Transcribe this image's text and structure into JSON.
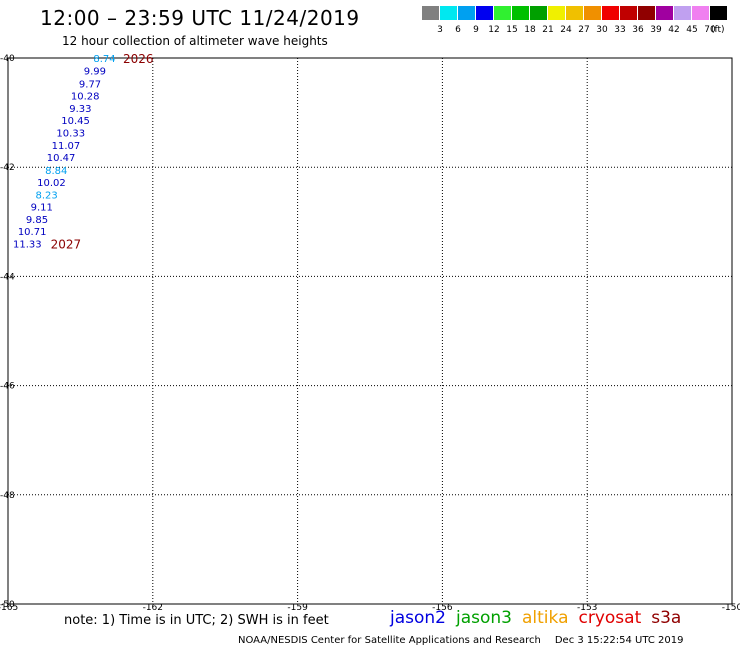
{
  "header": {
    "title": "12:00 – 23:59 UTC 11/24/2019",
    "subtitle": "12 hour collection of altimeter wave heights"
  },
  "legend": {
    "unit": "(ft)",
    "items": [
      {
        "label": "3",
        "color": "#808080"
      },
      {
        "label": "6",
        "color": "#00e8f0"
      },
      {
        "label": "9",
        "color": "#00a0f0"
      },
      {
        "label": "12",
        "color": "#0000f0"
      },
      {
        "label": "15",
        "color": "#30f030"
      },
      {
        "label": "18",
        "color": "#00c000"
      },
      {
        "label": "21",
        "color": "#00a000"
      },
      {
        "label": "24",
        "color": "#f0f000"
      },
      {
        "label": "27",
        "color": "#f0c000"
      },
      {
        "label": "30",
        "color": "#f09000"
      },
      {
        "label": "33",
        "color": "#f00000"
      },
      {
        "label": "36",
        "color": "#c00000"
      },
      {
        "label": "39",
        "color": "#900000"
      },
      {
        "label": "42",
        "color": "#a000a0"
      },
      {
        "label": "45",
        "color": "#c0a0f0"
      },
      {
        "label": "70",
        "color": "#f080f0"
      },
      {
        "label": "",
        "color": "#000000"
      }
    ]
  },
  "chart_data": {
    "type": "scatter",
    "x_ticks": [
      -165,
      -162,
      -159,
      -156,
      -153,
      -150
    ],
    "y_ticks": [
      -40,
      -42,
      -44,
      -46,
      -48,
      -50
    ],
    "xlim": [
      -165,
      -150
    ],
    "ylim": [
      -50,
      -40
    ],
    "grid": true,
    "points": [
      {
        "lon": -163.0,
        "lat": -40.0,
        "value": "8.74",
        "color": "#00a0f0"
      },
      {
        "lon": -163.2,
        "lat": -40.23,
        "value": "9.99",
        "color": "#0000c0"
      },
      {
        "lon": -163.3,
        "lat": -40.47,
        "value": "9.77",
        "color": "#0000c0"
      },
      {
        "lon": -163.4,
        "lat": -40.69,
        "value": "10.28",
        "color": "#0000c0"
      },
      {
        "lon": -163.5,
        "lat": -40.92,
        "value": "9.33",
        "color": "#0000c0"
      },
      {
        "lon": -163.6,
        "lat": -41.14,
        "value": "10.45",
        "color": "#0000c0"
      },
      {
        "lon": -163.7,
        "lat": -41.36,
        "value": "10.33",
        "color": "#0000c0"
      },
      {
        "lon": -163.8,
        "lat": -41.59,
        "value": "11.07",
        "color": "#0000c0"
      },
      {
        "lon": -163.9,
        "lat": -41.81,
        "value": "10.47",
        "color": "#0000c0"
      },
      {
        "lon": -164.0,
        "lat": -42.05,
        "value": "8.84",
        "color": "#00a0f0"
      },
      {
        "lon": -164.1,
        "lat": -42.27,
        "value": "10.02",
        "color": "#0000c0"
      },
      {
        "lon": -164.2,
        "lat": -42.5,
        "value": "8.23",
        "color": "#00a0f0"
      },
      {
        "lon": -164.3,
        "lat": -42.72,
        "value": "9.11",
        "color": "#0000c0"
      },
      {
        "lon": -164.4,
        "lat": -42.95,
        "value": "9.85",
        "color": "#0000c0"
      },
      {
        "lon": -164.5,
        "lat": -43.17,
        "value": "10.71",
        "color": "#0000c0"
      },
      {
        "lon": -164.6,
        "lat": -43.4,
        "value": "11.33",
        "color": "#0000c0"
      }
    ],
    "time_labels": [
      {
        "lon": -162.3,
        "lat": -40.0,
        "text": "2026",
        "color": "#8b0000"
      },
      {
        "lon": -163.8,
        "lat": -43.4,
        "text": "2027",
        "color": "#8b0000"
      }
    ]
  },
  "note": "note: 1) Time is in UTC; 2) SWH is in feet",
  "satellites": [
    {
      "name": "jason2",
      "color": "#0000e0"
    },
    {
      "name": "jason3",
      "color": "#00a000"
    },
    {
      "name": "altika",
      "color": "#f0a000"
    },
    {
      "name": "cryosat",
      "color": "#e00000"
    },
    {
      "name": "s3a",
      "color": "#900000"
    }
  ],
  "footer": {
    "credit": "NOAA/NESDIS Center for Satellite Applications and Research",
    "timestamp": "Dec  3 15:22:54 UTC 2019"
  }
}
